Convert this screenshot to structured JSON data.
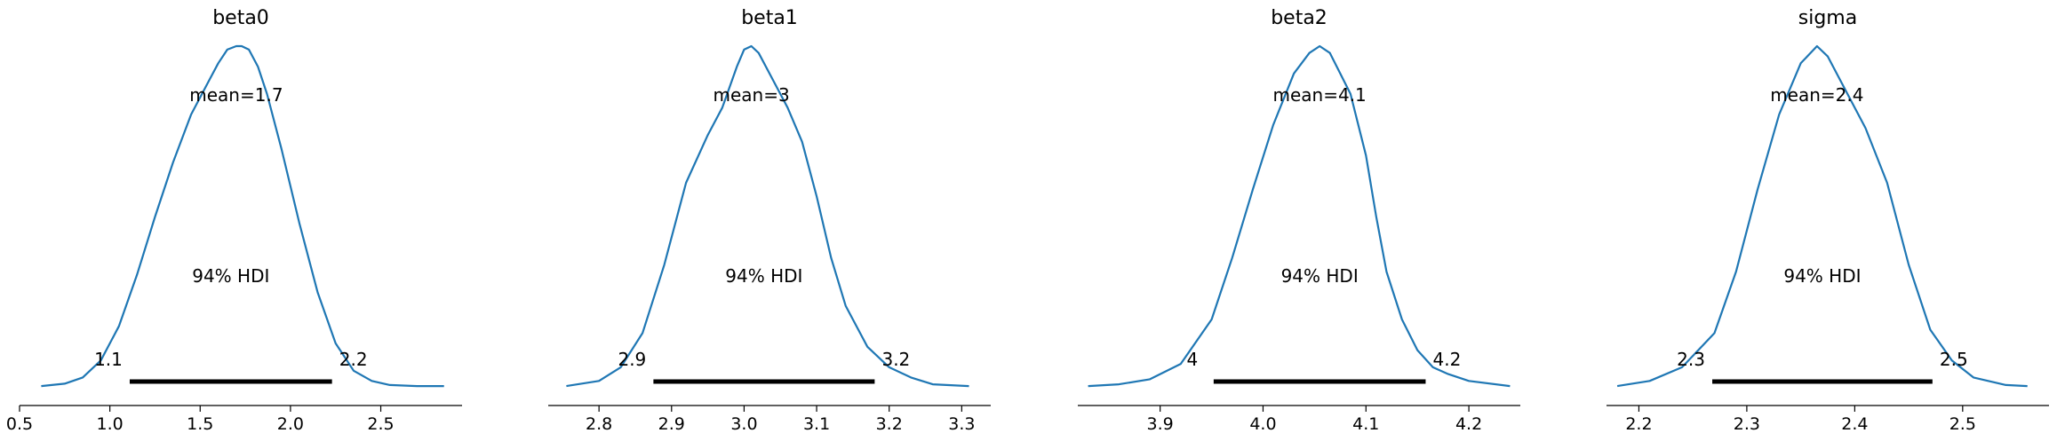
{
  "chart_data": [
    {
      "type": "area",
      "title": "beta0",
      "mean_label": "mean=1.7",
      "hdi_label": "94% HDI",
      "hdi": [
        1.11,
        2.23
      ],
      "hdi_lower_label": "1.1",
      "hdi_upper_label": "2.2",
      "xlim": [
        0.5,
        2.95
      ],
      "xticks": [
        0.5,
        1.0,
        1.5,
        2.0,
        2.5
      ],
      "xtick_labels": [
        "0.5",
        "1.0",
        "1.5",
        "2.0",
        "2.5"
      ],
      "x": [
        0.62,
        0.75,
        0.85,
        0.95,
        1.05,
        1.15,
        1.25,
        1.35,
        1.45,
        1.55,
        1.6,
        1.65,
        1.7,
        1.73,
        1.77,
        1.82,
        1.87,
        1.95,
        2.05,
        2.15,
        2.25,
        2.35,
        2.45,
        2.55,
        2.7,
        2.85
      ],
      "y": [
        0.005,
        0.012,
        0.03,
        0.08,
        0.18,
        0.33,
        0.5,
        0.66,
        0.8,
        0.9,
        0.95,
        0.99,
        1.0,
        1.0,
        0.99,
        0.94,
        0.86,
        0.7,
        0.48,
        0.28,
        0.13,
        0.05,
        0.02,
        0.008,
        0.005,
        0.005
      ],
      "line_color": "#1f77b4",
      "hdi_color": "#000000",
      "grid": false
    },
    {
      "type": "area",
      "title": "beta1",
      "mean_label": "mean=3",
      "hdi_label": "94% HDI",
      "hdi": [
        2.875,
        3.18
      ],
      "hdi_lower_label": "2.9",
      "hdi_upper_label": "3.2",
      "xlim": [
        2.73,
        3.34
      ],
      "xticks": [
        2.8,
        2.9,
        3.0,
        3.1,
        3.2,
        3.3
      ],
      "xtick_labels": [
        "2.8",
        "2.9",
        "3.0",
        "3.1",
        "3.2",
        "3.3"
      ],
      "x": [
        2.755,
        2.8,
        2.83,
        2.86,
        2.89,
        2.92,
        2.95,
        2.97,
        2.99,
        3.0,
        3.01,
        3.02,
        3.04,
        3.06,
        3.08,
        3.1,
        3.12,
        3.14,
        3.17,
        3.2,
        3.23,
        3.26,
        3.31
      ],
      "y": [
        0.005,
        0.02,
        0.06,
        0.16,
        0.36,
        0.6,
        0.74,
        0.82,
        0.94,
        0.99,
        1.0,
        0.98,
        0.9,
        0.82,
        0.72,
        0.56,
        0.38,
        0.24,
        0.12,
        0.06,
        0.03,
        0.01,
        0.005
      ],
      "line_color": "#1f77b4",
      "hdi_color": "#000000",
      "grid": false
    },
    {
      "type": "area",
      "title": "beta2",
      "mean_label": "mean=4.1",
      "hdi_label": "94% HDI",
      "hdi": [
        3.952,
        4.158
      ],
      "hdi_lower_label": "4",
      "hdi_upper_label": "4.2",
      "xlim": [
        3.82,
        4.25
      ],
      "xticks": [
        3.9,
        4.0,
        4.1,
        4.2
      ],
      "xtick_labels": [
        "3.9",
        "4.0",
        "4.1",
        "4.2"
      ],
      "x": [
        3.83,
        3.86,
        3.89,
        3.92,
        3.95,
        3.97,
        3.99,
        4.01,
        4.03,
        4.045,
        4.055,
        4.065,
        4.075,
        4.085,
        4.1,
        4.11,
        4.12,
        4.135,
        4.15,
        4.165,
        4.18,
        4.2,
        4.24
      ],
      "y": [
        0.005,
        0.01,
        0.025,
        0.07,
        0.2,
        0.38,
        0.58,
        0.77,
        0.92,
        0.98,
        1.0,
        0.98,
        0.92,
        0.86,
        0.68,
        0.5,
        0.34,
        0.2,
        0.11,
        0.06,
        0.04,
        0.02,
        0.005
      ],
      "line_color": "#1f77b4",
      "hdi_color": "#000000",
      "grid": false
    },
    {
      "type": "area",
      "title": "sigma",
      "mean_label": "mean=2.4",
      "hdi_label": "94% HDI",
      "hdi": [
        2.268,
        2.472
      ],
      "hdi_lower_label": "2.3",
      "hdi_upper_label": "2.5",
      "xlim": [
        2.17,
        2.58
      ],
      "xticks": [
        2.2,
        2.3,
        2.4,
        2.5
      ],
      "xtick_labels": [
        "2.2",
        "2.3",
        "2.4",
        "2.5"
      ],
      "x": [
        2.18,
        2.21,
        2.24,
        2.27,
        2.29,
        2.31,
        2.33,
        2.35,
        2.365,
        2.375,
        2.39,
        2.41,
        2.43,
        2.45,
        2.47,
        2.49,
        2.51,
        2.54,
        2.56
      ],
      "y": [
        0.005,
        0.02,
        0.06,
        0.16,
        0.34,
        0.58,
        0.8,
        0.95,
        1.0,
        0.97,
        0.88,
        0.76,
        0.6,
        0.36,
        0.17,
        0.08,
        0.03,
        0.008,
        0.005
      ],
      "line_color": "#1f77b4",
      "hdi_color": "#000000",
      "grid": false
    }
  ]
}
